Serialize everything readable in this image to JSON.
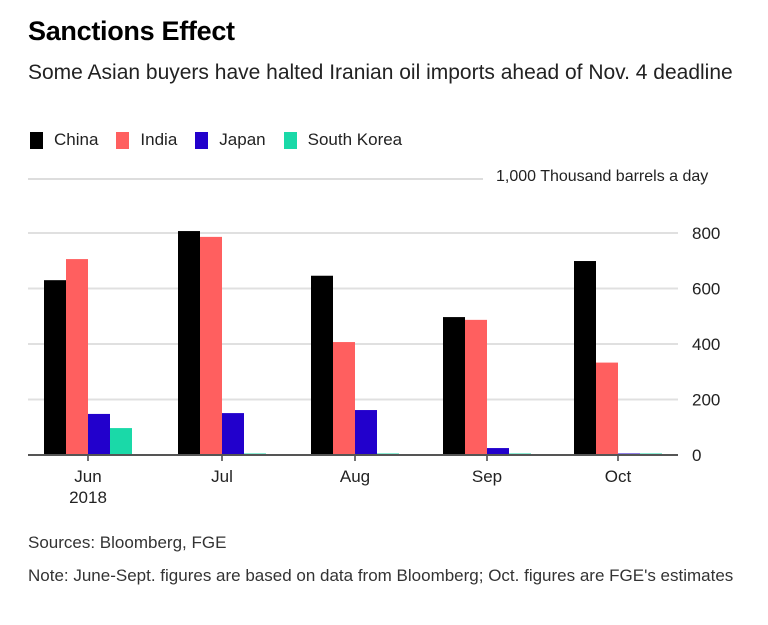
{
  "chart_data": {
    "type": "bar",
    "title": "Sanctions Effect",
    "subtitle": "Some Asian buyers have halted Iranian oil imports ahead of Nov. 4 deadline",
    "unit_label": "1,000 Thousand barrels a day",
    "categories": [
      "Jun 2018",
      "Jul",
      "Aug",
      "Sep",
      "Oct"
    ],
    "category_lines": [
      [
        "Jun",
        "2018"
      ],
      [
        "Jul"
      ],
      [
        "Aug"
      ],
      [
        "Sep"
      ],
      [
        "Oct"
      ]
    ],
    "series": [
      {
        "name": "China",
        "color": "#000000",
        "values": [
          630,
          807,
          646,
          497,
          699
        ]
      },
      {
        "name": "India",
        "color": "#ff5f5f",
        "values": [
          706,
          786,
          407,
          487,
          333
        ]
      },
      {
        "name": "Japan",
        "color": "#2200cc",
        "values": [
          148,
          151,
          162,
          25,
          3
        ]
      },
      {
        "name": "South Korea",
        "color": "#1ad9a8",
        "values": [
          97,
          3,
          3,
          3,
          3
        ]
      }
    ],
    "yticks": [
      0,
      200,
      400,
      600,
      800
    ],
    "ytick_labels": [
      "0",
      "200",
      "400",
      "600",
      "800"
    ],
    "ylim": [
      0,
      1000
    ],
    "xlabel": "",
    "ylabel": "Thousand barrels a day",
    "grid": true,
    "y_axis_side": "right",
    "legend_position": "top-left"
  },
  "footer": {
    "source": "Sources: Bloomberg, FGE",
    "note": "Note: June-Sept. figures are based on data from Bloomberg; Oct. figures are FGE's estimates"
  }
}
